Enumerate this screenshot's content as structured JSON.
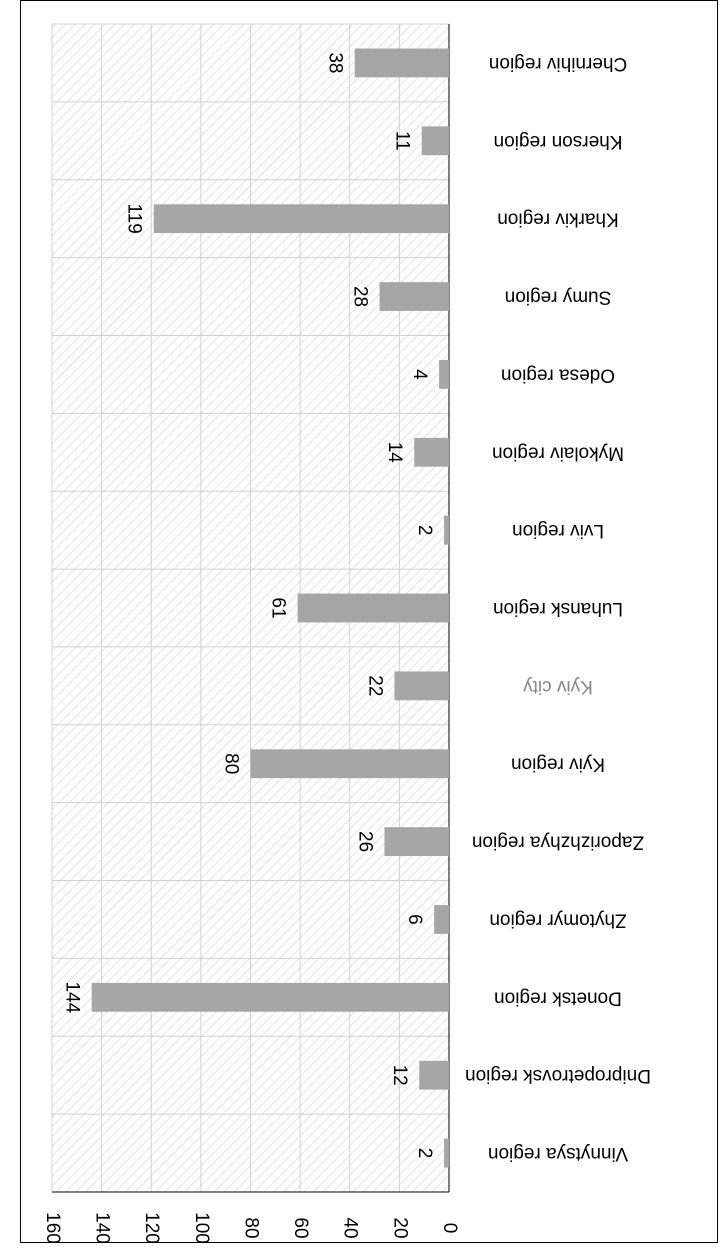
{
  "chart_data": {
    "type": "bar",
    "orientation": "rotated-180",
    "categories": [
      "Vinnytsya region",
      "Dnipropetrovsk region",
      "Donetsk region",
      "Zhytomyr region",
      "Zaporizhzhya region",
      "Kyiv region",
      "Kyiv city",
      "Luhansk region",
      "Lviv region",
      "Mykolaiv region",
      "Odesa region",
      "Sumy region",
      "Kharkiv region",
      "Kherson region",
      "Chernihiv region"
    ],
    "values": [
      2,
      12,
      144,
      6,
      26,
      80,
      22,
      61,
      2,
      14,
      4,
      28,
      119,
      11,
      38
    ],
    "ylim": [
      0,
      160
    ],
    "yticks": [
      0,
      20,
      40,
      60,
      80,
      100,
      120,
      140,
      160
    ],
    "data_labels": true,
    "grid": true,
    "colors": {
      "bar": "#a6a6a6",
      "hatch": "#d9d9d9",
      "grid": "#d0d0d0",
      "axis": "#000000",
      "dim_label": "#888888"
    }
  }
}
